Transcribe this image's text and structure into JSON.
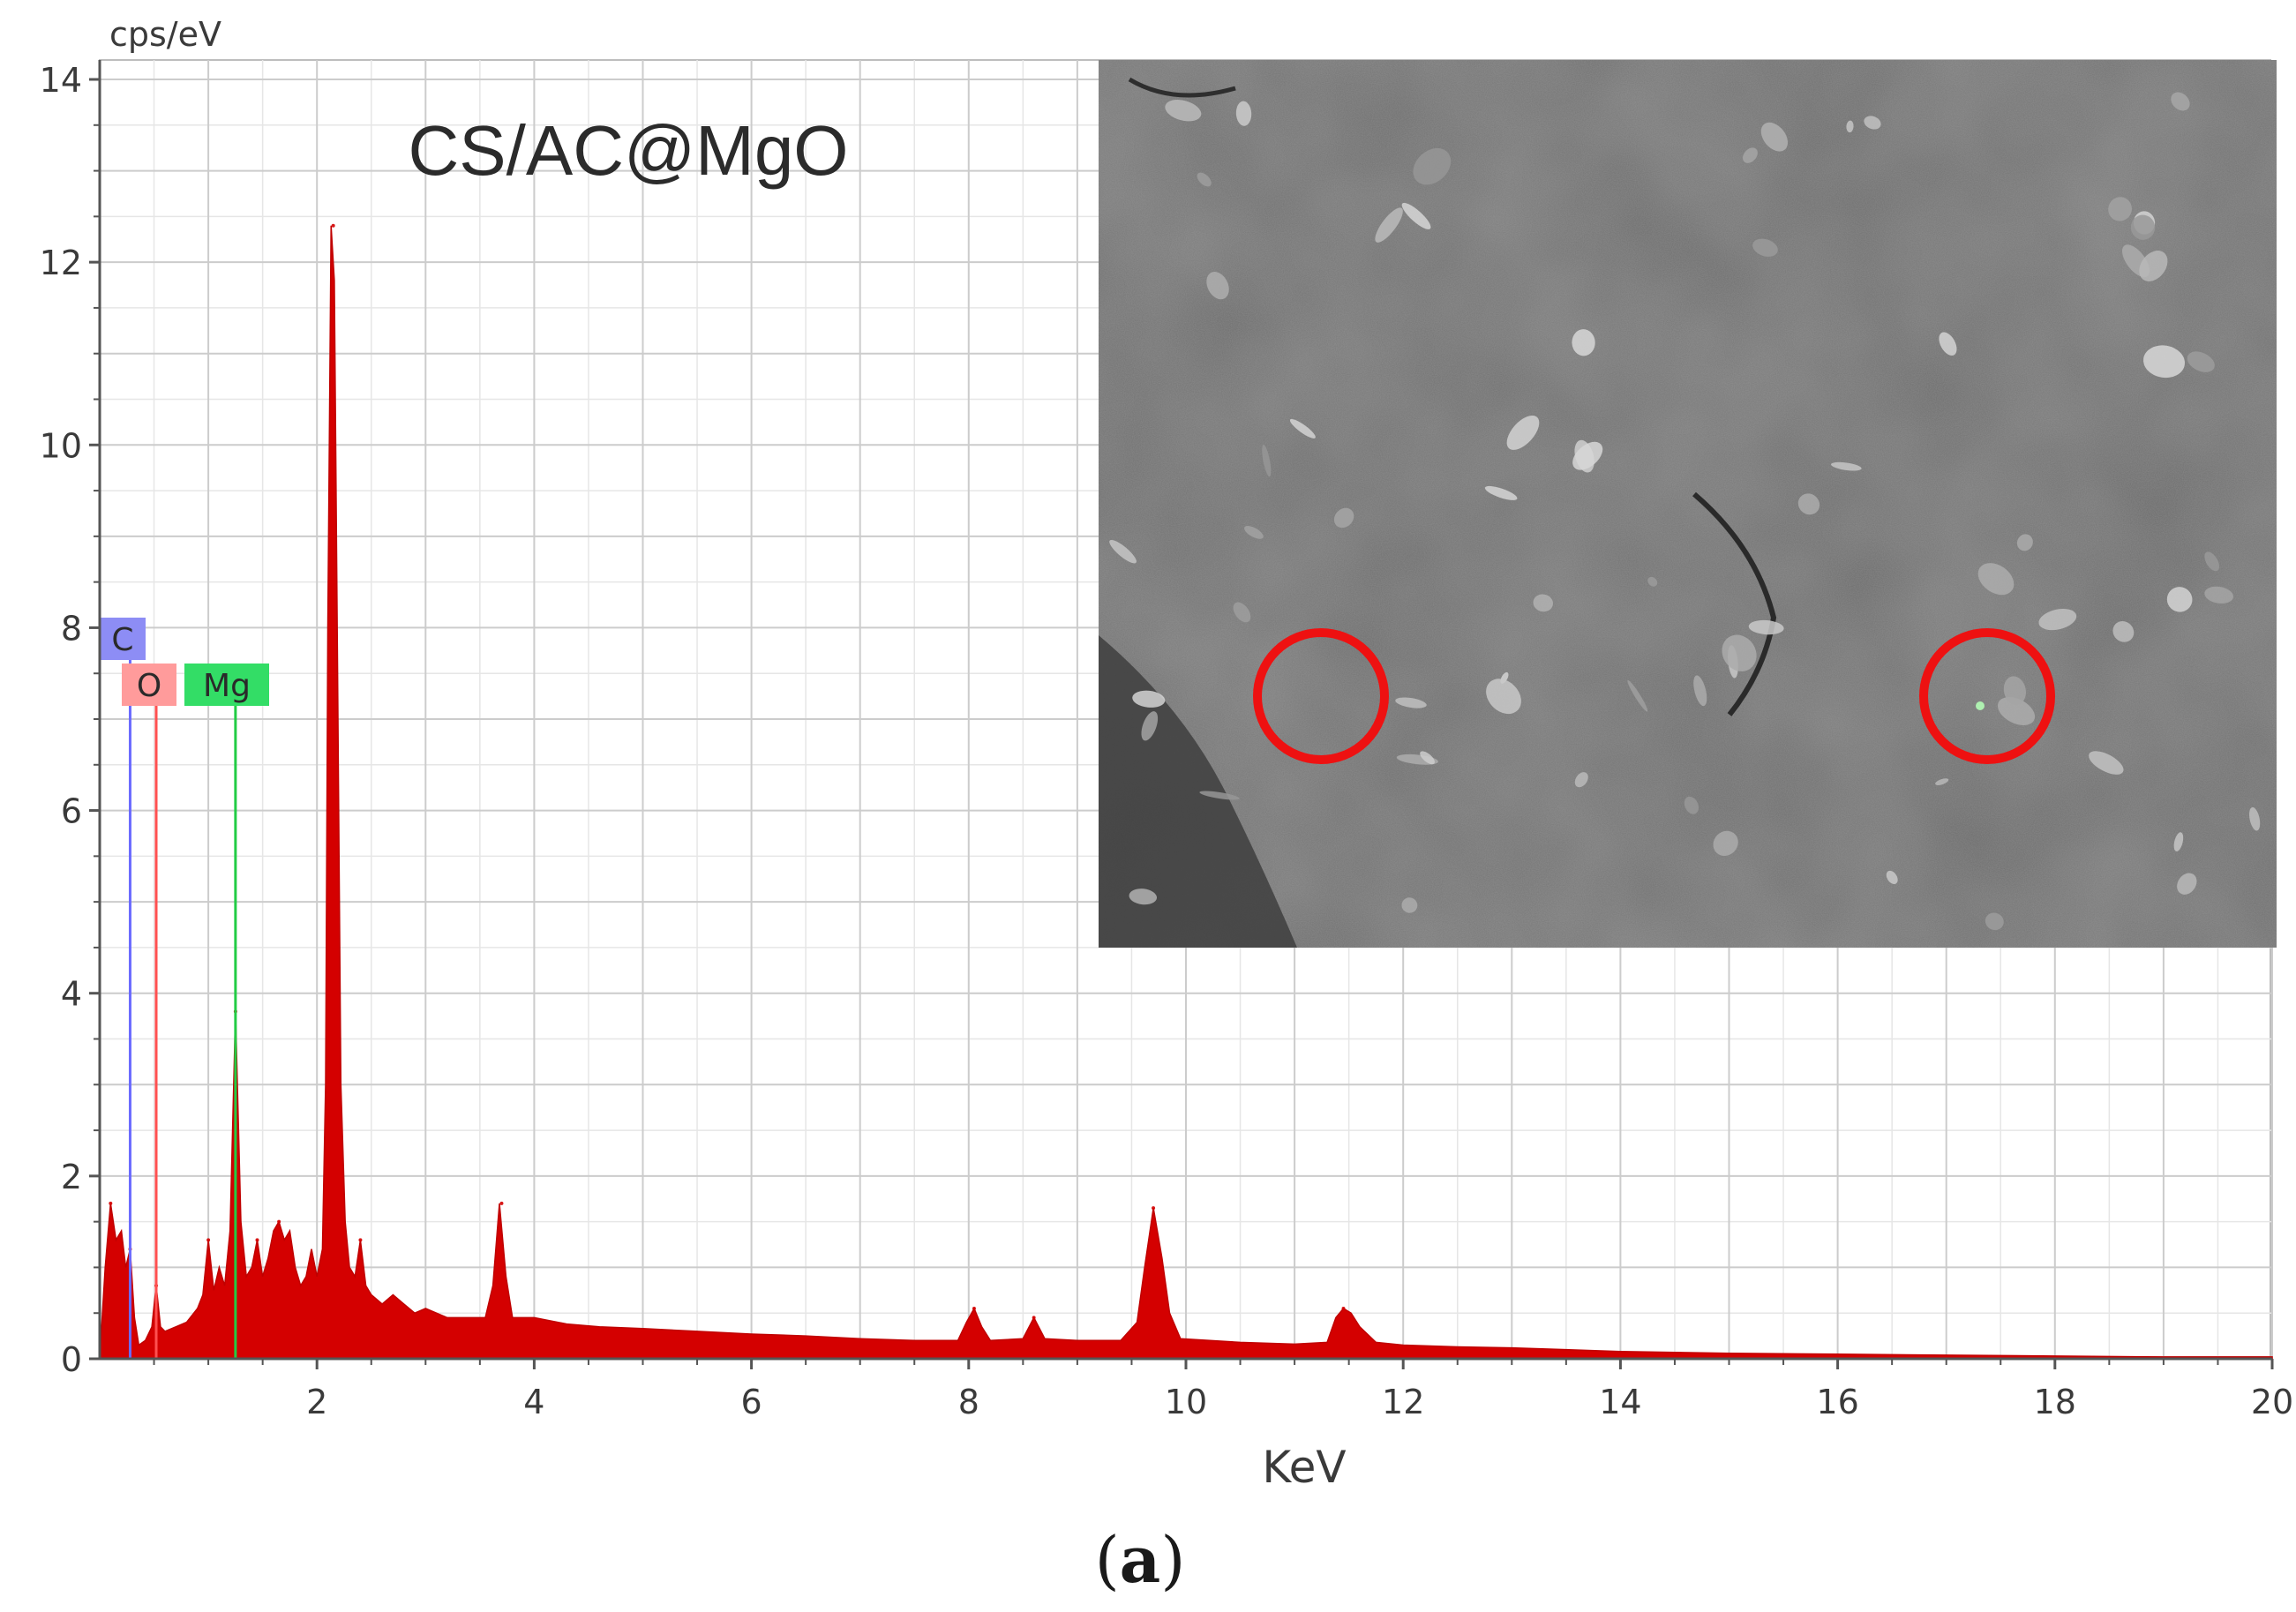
{
  "figure": {
    "caption_open": "(",
    "caption_letter": "a",
    "caption_close": ")"
  },
  "colors": {
    "spectrum": "#d40000",
    "grid": "#cfcfcf",
    "axis": "#555555",
    "text": "#3a3a3a",
    "marker_C_fill": "#8d8df5",
    "marker_C_line": "#6b6bff",
    "marker_O_fill": "#ff9b9b",
    "marker_O_line": "#ff5050",
    "marker_Mg_fill": "#33dd66",
    "marker_Mg_line": "#22cc44",
    "sem_circle": "#ee1111"
  },
  "inset": {
    "description_icon": "sem-micrograph",
    "highlight_count": 2
  },
  "chart_data": {
    "type": "area",
    "title": "CS/AC@MgO",
    "xlabel": "KeV",
    "ylabel": "cps/eV",
    "xlim": [
      0,
      20
    ],
    "ylim": [
      0,
      14
    ],
    "x_ticks": [
      2,
      4,
      6,
      8,
      10,
      12,
      14,
      16,
      18,
      20
    ],
    "y_ticks": [
      0,
      2,
      4,
      6,
      8,
      10,
      12,
      14
    ],
    "grid": true,
    "element_markers": [
      {
        "label": "C",
        "energy": 0.28,
        "color": "#6b6bff"
      },
      {
        "label": "O",
        "energy": 0.52,
        "color": "#ff5050"
      },
      {
        "label": "Mg",
        "energy": 1.25,
        "color": "#22cc44"
      }
    ],
    "peaks": [
      {
        "x": 0.1,
        "y": 1.7
      },
      {
        "x": 0.28,
        "y": 1.2
      },
      {
        "x": 0.52,
        "y": 0.8
      },
      {
        "x": 1.0,
        "y": 1.3
      },
      {
        "x": 1.25,
        "y": 3.8
      },
      {
        "x": 1.45,
        "y": 1.3
      },
      {
        "x": 1.65,
        "y": 1.5
      },
      {
        "x": 2.15,
        "y": 12.4
      },
      {
        "x": 2.4,
        "y": 1.3
      },
      {
        "x": 3.7,
        "y": 1.7
      },
      {
        "x": 8.05,
        "y": 0.55
      },
      {
        "x": 8.6,
        "y": 0.45
      },
      {
        "x": 9.7,
        "y": 1.65
      },
      {
        "x": 11.45,
        "y": 0.55
      }
    ],
    "series": [
      {
        "values": [
          [
            0.0,
            0.0
          ],
          [
            0.05,
            1.0
          ],
          [
            0.1,
            1.7
          ],
          [
            0.15,
            1.3
          ],
          [
            0.2,
            1.4
          ],
          [
            0.24,
            1.0
          ],
          [
            0.28,
            1.2
          ],
          [
            0.32,
            0.45
          ],
          [
            0.36,
            0.15
          ],
          [
            0.42,
            0.2
          ],
          [
            0.48,
            0.35
          ],
          [
            0.52,
            0.8
          ],
          [
            0.56,
            0.35
          ],
          [
            0.6,
            0.3
          ],
          [
            0.7,
            0.35
          ],
          [
            0.8,
            0.4
          ],
          [
            0.9,
            0.55
          ],
          [
            0.95,
            0.7
          ],
          [
            1.0,
            1.3
          ],
          [
            1.05,
            0.75
          ],
          [
            1.1,
            1.0
          ],
          [
            1.15,
            0.8
          ],
          [
            1.2,
            1.4
          ],
          [
            1.25,
            3.8
          ],
          [
            1.3,
            1.5
          ],
          [
            1.35,
            0.9
          ],
          [
            1.4,
            1.0
          ],
          [
            1.45,
            1.3
          ],
          [
            1.5,
            0.9
          ],
          [
            1.55,
            1.1
          ],
          [
            1.6,
            1.4
          ],
          [
            1.65,
            1.5
          ],
          [
            1.7,
            1.3
          ],
          [
            1.75,
            1.4
          ],
          [
            1.8,
            1.0
          ],
          [
            1.85,
            0.8
          ],
          [
            1.9,
            0.9
          ],
          [
            1.95,
            1.2
          ],
          [
            2.0,
            0.9
          ],
          [
            2.05,
            1.2
          ],
          [
            2.08,
            3.0
          ],
          [
            2.1,
            8.0
          ],
          [
            2.13,
            12.4
          ],
          [
            2.16,
            11.8
          ],
          [
            2.19,
            7.5
          ],
          [
            2.22,
            3.0
          ],
          [
            2.26,
            1.5
          ],
          [
            2.3,
            1.0
          ],
          [
            2.35,
            0.9
          ],
          [
            2.4,
            1.3
          ],
          [
            2.45,
            0.8
          ],
          [
            2.5,
            0.7
          ],
          [
            2.6,
            0.6
          ],
          [
            2.7,
            0.7
          ],
          [
            2.8,
            0.6
          ],
          [
            2.9,
            0.5
          ],
          [
            3.0,
            0.55
          ],
          [
            3.2,
            0.45
          ],
          [
            3.4,
            0.45
          ],
          [
            3.55,
            0.45
          ],
          [
            3.62,
            0.8
          ],
          [
            3.68,
            1.7
          ],
          [
            3.74,
            0.9
          ],
          [
            3.8,
            0.45
          ],
          [
            4.0,
            0.45
          ],
          [
            4.3,
            0.38
          ],
          [
            4.6,
            0.35
          ],
          [
            5.0,
            0.33
          ],
          [
            5.5,
            0.3
          ],
          [
            6.0,
            0.27
          ],
          [
            6.5,
            0.25
          ],
          [
            7.0,
            0.22
          ],
          [
            7.5,
            0.2
          ],
          [
            7.9,
            0.2
          ],
          [
            7.98,
            0.4
          ],
          [
            8.05,
            0.55
          ],
          [
            8.12,
            0.35
          ],
          [
            8.2,
            0.2
          ],
          [
            8.5,
            0.22
          ],
          [
            8.6,
            0.45
          ],
          [
            8.7,
            0.22
          ],
          [
            9.0,
            0.2
          ],
          [
            9.4,
            0.2
          ],
          [
            9.55,
            0.4
          ],
          [
            9.62,
            1.0
          ],
          [
            9.7,
            1.65
          ],
          [
            9.78,
            1.1
          ],
          [
            9.85,
            0.5
          ],
          [
            9.95,
            0.22
          ],
          [
            10.5,
            0.18
          ],
          [
            11.0,
            0.16
          ],
          [
            11.3,
            0.18
          ],
          [
            11.38,
            0.45
          ],
          [
            11.45,
            0.55
          ],
          [
            11.52,
            0.5
          ],
          [
            11.6,
            0.35
          ],
          [
            11.75,
            0.18
          ],
          [
            12.0,
            0.15
          ],
          [
            12.5,
            0.13
          ],
          [
            13.0,
            0.12
          ],
          [
            13.5,
            0.1
          ],
          [
            14.0,
            0.08
          ],
          [
            15.0,
            0.06
          ],
          [
            16.0,
            0.05
          ],
          [
            17.0,
            0.04
          ],
          [
            18.0,
            0.03
          ],
          [
            19.0,
            0.02
          ],
          [
            20.0,
            0.02
          ]
        ]
      }
    ]
  }
}
